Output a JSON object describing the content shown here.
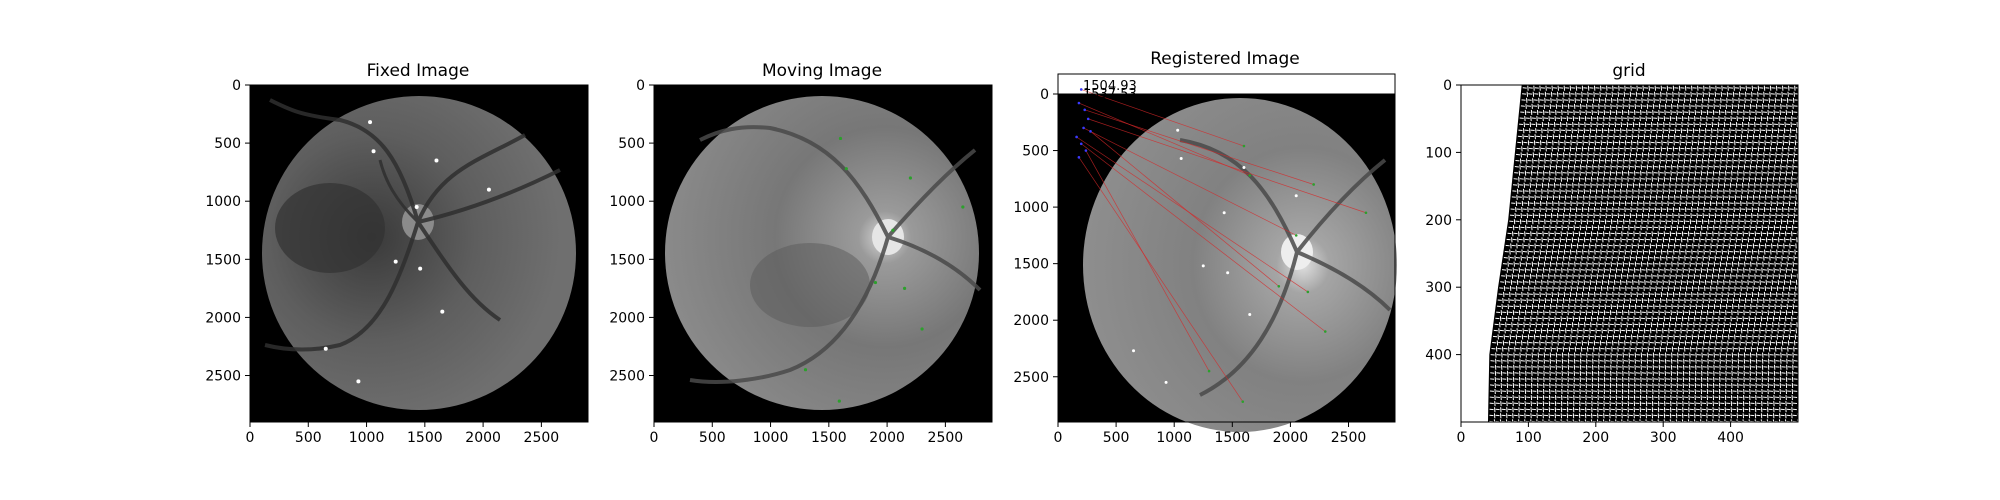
{
  "chart_data": [
    {
      "type": "image",
      "title": "Fixed Image",
      "xlim": [
        0,
        2900
      ],
      "ylim": [
        2900,
        0
      ],
      "xticks": [
        0,
        500,
        1000,
        1500,
        2000,
        2500
      ],
      "yticks": [
        0,
        500,
        1000,
        1500,
        2000,
        2500
      ],
      "xticklabels": [
        "0",
        "500",
        "1000",
        "1500",
        "2000",
        "2500"
      ],
      "yticklabels": [
        "0",
        "500",
        "1000",
        "1500",
        "2000",
        "2500"
      ],
      "keypoint_color": "#ffffff",
      "keypoints": [
        [
          1030,
          320
        ],
        [
          1060,
          570
        ],
        [
          1600,
          650
        ],
        [
          2050,
          900
        ],
        [
          1430,
          1050
        ],
        [
          1250,
          1520
        ],
        [
          1460,
          1580
        ],
        [
          1650,
          1950
        ],
        [
          650,
          2270
        ],
        [
          930,
          2550
        ]
      ]
    },
    {
      "type": "image",
      "title": "Moving Image",
      "xlim": [
        0,
        2900
      ],
      "ylim": [
        2900,
        0
      ],
      "xticks": [
        0,
        500,
        1000,
        1500,
        2000,
        2500
      ],
      "yticks": [
        0,
        500,
        1000,
        1500,
        2000,
        2500
      ],
      "xticklabels": [
        "0",
        "500",
        "1000",
        "1500",
        "2000",
        "2500"
      ],
      "yticklabels": [
        "0",
        "500",
        "1000",
        "1500",
        "2000",
        "2500"
      ],
      "keypoint_color": "#2ca02c",
      "keypoints": [
        [
          1600,
          460
        ],
        [
          1650,
          720
        ],
        [
          2200,
          800
        ],
        [
          2650,
          1050
        ],
        [
          2050,
          1250
        ],
        [
          1900,
          1700
        ],
        [
          2150,
          1750
        ],
        [
          2300,
          2100
        ],
        [
          1300,
          2450
        ],
        [
          1590,
          2720
        ]
      ]
    },
    {
      "type": "image",
      "title": "Registered Image",
      "xlim": [
        0,
        2900
      ],
      "ylim": [
        2900,
        0
      ],
      "xticks": [
        0,
        500,
        1000,
        1500,
        2000,
        2500
      ],
      "yticks": [
        0,
        500,
        1000,
        1500,
        2000,
        2500
      ],
      "xticklabels": [
        "0",
        "500",
        "1000",
        "1500",
        "2000",
        "2500"
      ],
      "yticklabels": [
        "0",
        "500",
        "1000",
        "1500",
        "2000",
        "2500"
      ],
      "annotations": [
        "1504.93",
        "1537.53"
      ],
      "line_color": "#d62728",
      "fixed_points": [
        [
          1030,
          320
        ],
        [
          1060,
          570
        ],
        [
          1600,
          650
        ],
        [
          2050,
          900
        ],
        [
          1430,
          1050
        ],
        [
          1250,
          1520
        ],
        [
          1460,
          1580
        ],
        [
          1650,
          1950
        ],
        [
          650,
          2270
        ],
        [
          930,
          2550
        ]
      ],
      "moved_points": [
        [
          1600,
          460
        ],
        [
          1650,
          720
        ],
        [
          2200,
          800
        ],
        [
          2650,
          1050
        ],
        [
          2050,
          1250
        ],
        [
          1900,
          1700
        ],
        [
          2150,
          1750
        ],
        [
          2300,
          2100
        ],
        [
          1300,
          2450
        ],
        [
          1590,
          2720
        ]
      ],
      "link_source_points": [
        [
          200,
          -40
        ],
        [
          180,
          80
        ],
        [
          230,
          140
        ],
        [
          260,
          220
        ],
        [
          220,
          300
        ],
        [
          280,
          330
        ],
        [
          160,
          380
        ],
        [
          200,
          440
        ],
        [
          240,
          500
        ],
        [
          180,
          560
        ]
      ]
    },
    {
      "type": "image",
      "title": "grid",
      "xlim": [
        0,
        500
      ],
      "ylim": [
        500,
        0
      ],
      "xticks": [
        0,
        100,
        200,
        300,
        400
      ],
      "yticks": [
        0,
        100,
        200,
        300,
        400
      ],
      "xticklabels": [
        "0",
        "100",
        "200",
        "300",
        "400"
      ],
      "yticklabels": [
        "0",
        "100",
        "200",
        "300",
        "400"
      ],
      "left_boundary": [
        [
          90,
          0
        ],
        [
          80,
          100
        ],
        [
          70,
          200
        ],
        [
          55,
          300
        ],
        [
          42,
          400
        ],
        [
          40,
          500
        ]
      ]
    }
  ]
}
